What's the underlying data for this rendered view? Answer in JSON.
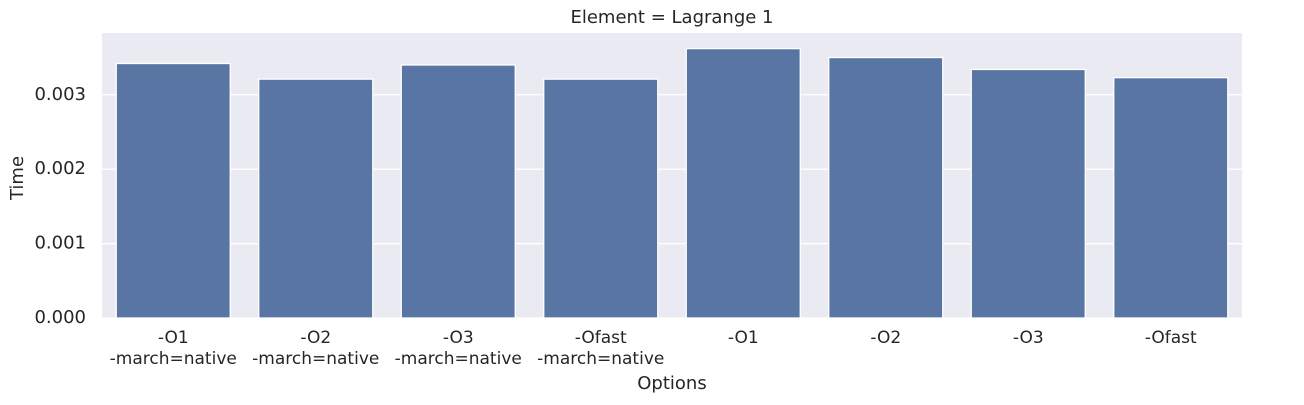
{
  "chart_data": {
    "type": "bar",
    "title": "Element = Lagrange 1",
    "x_label": "Options",
    "y_label": "Time",
    "categories": [
      "-O1\n-march=native",
      "-O2\n-march=native",
      "-O3\n-march=native",
      "-Ofast\n-march=native",
      "-O1",
      "-O2",
      "-O3",
      "-Ofast"
    ],
    "values": [
      0.00342,
      0.00321,
      0.0034,
      0.00321,
      0.00362,
      0.0035,
      0.00334,
      0.00323
    ],
    "color": "#5975a4",
    "background": "#eaeaf2",
    "grid": true,
    "ylim": [
      0,
      0.00383
    ],
    "yticks": [
      {
        "value": 0,
        "label": "0.000"
      },
      {
        "value": 0.001,
        "label": "0.001"
      },
      {
        "value": 0.002,
        "label": "0.002"
      },
      {
        "value": 0.003,
        "label": "0.003"
      }
    ]
  }
}
